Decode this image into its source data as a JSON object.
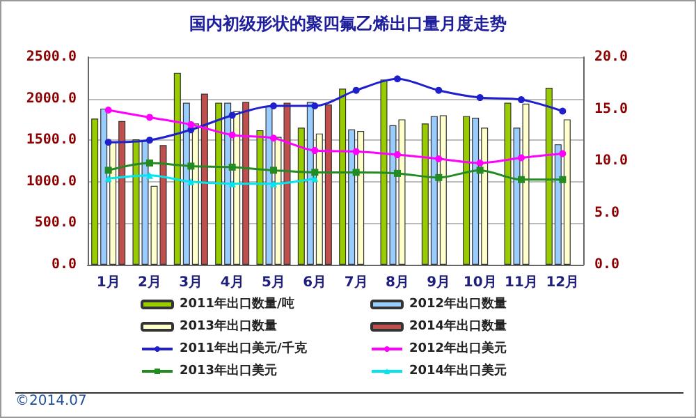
{
  "chart_data": {
    "type": "bar",
    "title": "国内初级形状的聚四氟乙烯出口量月度走势",
    "categories": [
      "1月",
      "2月",
      "3月",
      "4月",
      "5月",
      "6月",
      "7月",
      "8月",
      "9月",
      "10月",
      "11月",
      "12月"
    ],
    "series": [
      {
        "name": "2011年出口数量/吨",
        "color": "#99cc00",
        "values": [
          1760,
          1510,
          2310,
          1950,
          1620,
          1650,
          2120,
          2230,
          1700,
          1790,
          1950,
          2130
        ]
      },
      {
        "name": "2012年出口数量",
        "color": "#99ccff",
        "values": [
          1880,
          1500,
          1950,
          1950,
          1910,
          1960,
          1630,
          1680,
          1790,
          1770,
          1650,
          1450
        ]
      },
      {
        "name": "2013年出口数量",
        "color": "#ffffcc",
        "values": [
          1480,
          950,
          1700,
          1850,
          1540,
          1580,
          1610,
          1750,
          1800,
          1650,
          1940,
          1750
        ]
      },
      {
        "name": "2014年出口数量",
        "color": "#c0504d",
        "values": [
          1730,
          1440,
          2060,
          1960,
          1950,
          1930,
          null,
          null,
          null,
          null,
          null,
          null
        ]
      },
      {
        "name": "2011年出口美元/千克",
        "type": "line",
        "axis": "y2",
        "marker": "circle",
        "color": "#1f1fcc",
        "values": [
          11.8,
          12.0,
          13.0,
          14.4,
          15.3,
          15.3,
          16.8,
          17.9,
          16.8,
          16.1,
          15.9,
          14.8
        ]
      },
      {
        "name": "2012年出口美元",
        "type": "line",
        "axis": "y2",
        "marker": "circle",
        "color": "#ff00ff",
        "values": [
          14.9,
          14.2,
          13.5,
          12.5,
          12.2,
          11.0,
          10.9,
          10.6,
          10.2,
          9.8,
          10.3,
          10.7
        ]
      },
      {
        "name": "2013年出口美元",
        "type": "line",
        "axis": "y2",
        "marker": "square",
        "color": "#228b22",
        "values": [
          9.1,
          9.8,
          9.5,
          9.4,
          9.1,
          8.9,
          8.9,
          8.8,
          8.4,
          9.1,
          8.2,
          8.2
        ]
      },
      {
        "name": "2014年出口美元",
        "type": "line",
        "axis": "y2",
        "marker": "triangle",
        "color": "#00e5ee",
        "values": [
          8.3,
          8.6,
          8.0,
          7.8,
          7.8,
          8.3,
          null,
          null,
          null,
          null,
          null,
          null
        ]
      }
    ],
    "ylim": [
      0,
      2500
    ],
    "yticks": [
      {
        "value": 0,
        "label": "0.0"
      },
      {
        "value": 500,
        "label": "500.0"
      },
      {
        "value": 1000,
        "label": "1000.0"
      },
      {
        "value": 1500,
        "label": "1500.0"
      },
      {
        "value": 2000,
        "label": "2000.0"
      },
      {
        "value": 2500,
        "label": "2500.0"
      }
    ],
    "y2lim": [
      0,
      20
    ],
    "y2ticks": [
      {
        "value": 0,
        "label": "0.0"
      },
      {
        "value": 5,
        "label": "5.0"
      },
      {
        "value": 10,
        "label": "10.0"
      },
      {
        "value": 15,
        "label": "15.0"
      },
      {
        "value": 20,
        "label": "20.0"
      }
    ],
    "grid": "y",
    "legend": "bottom",
    "line_style": "solid",
    "annotations": [
      "©2014.07"
    ]
  }
}
